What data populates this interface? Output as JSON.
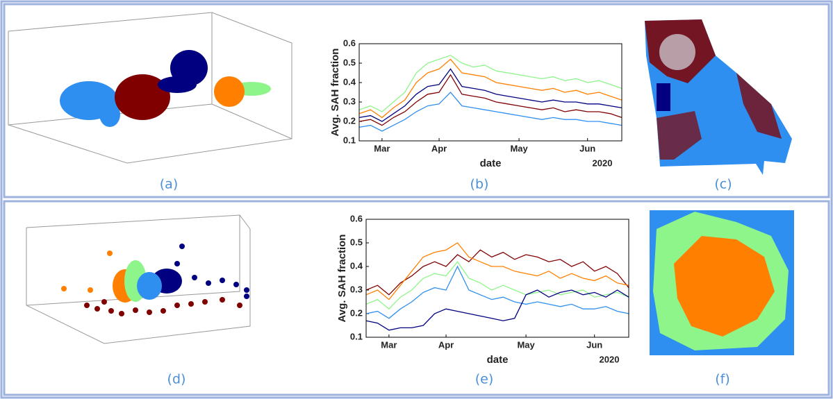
{
  "panel_labels": [
    "(a)",
    "(b)",
    "(c)",
    "(d)",
    "(e)",
    "(f)"
  ],
  "chart_data": [
    {
      "type": "line",
      "ylabel": "Avg. SAH fraction",
      "xlabel": "date",
      "year_label": "2020",
      "categories": [
        null,
        null,
        "Mar",
        null,
        null,
        null,
        null,
        "Apr",
        null,
        null,
        null,
        null,
        null,
        null,
        "May",
        null,
        null,
        null,
        null,
        null,
        "Jun",
        null,
        null,
        null
      ],
      "ylim": [
        0.1,
        0.6
      ],
      "yticks": [
        0.1,
        0.2,
        0.3,
        0.4,
        0.5,
        0.6
      ],
      "series": [
        {
          "color": "#8ef58b",
          "values": [
            0.26,
            0.28,
            0.25,
            0.3,
            0.35,
            0.45,
            0.5,
            0.52,
            0.54,
            0.5,
            0.48,
            0.49,
            0.46,
            0.45,
            0.44,
            0.43,
            0.42,
            0.43,
            0.41,
            0.42,
            0.4,
            0.41,
            0.39,
            0.37
          ]
        },
        {
          "color": "#ff8000",
          "values": [
            0.24,
            0.26,
            0.22,
            0.27,
            0.31,
            0.4,
            0.45,
            0.47,
            0.52,
            0.45,
            0.44,
            0.43,
            0.4,
            0.39,
            0.38,
            0.37,
            0.36,
            0.37,
            0.35,
            0.36,
            0.34,
            0.35,
            0.33,
            0.31
          ]
        },
        {
          "color": "#000080",
          "values": [
            0.22,
            0.23,
            0.2,
            0.24,
            0.28,
            0.34,
            0.38,
            0.39,
            0.47,
            0.38,
            0.37,
            0.36,
            0.34,
            0.33,
            0.32,
            0.31,
            0.3,
            0.31,
            0.3,
            0.3,
            0.29,
            0.29,
            0.28,
            0.27
          ]
        },
        {
          "color": "#800000",
          "values": [
            0.2,
            0.21,
            0.18,
            0.22,
            0.25,
            0.3,
            0.34,
            0.35,
            0.44,
            0.34,
            0.33,
            0.32,
            0.3,
            0.29,
            0.28,
            0.27,
            0.26,
            0.27,
            0.25,
            0.26,
            0.25,
            0.25,
            0.24,
            0.22
          ]
        },
        {
          "color": "#2f8ff0",
          "values": [
            0.17,
            0.18,
            0.15,
            0.18,
            0.21,
            0.25,
            0.28,
            0.29,
            0.35,
            0.28,
            0.27,
            0.26,
            0.25,
            0.24,
            0.23,
            0.22,
            0.21,
            0.22,
            0.21,
            0.21,
            0.2,
            0.2,
            0.19,
            0.18
          ]
        }
      ]
    },
    {
      "type": "line",
      "ylabel": "Avg. SAH fraction",
      "xlabel": "date",
      "year_label": "2020",
      "categories": [
        null,
        null,
        "Mar",
        null,
        null,
        null,
        null,
        "Apr",
        null,
        null,
        null,
        null,
        null,
        null,
        "May",
        null,
        null,
        null,
        null,
        null,
        "Jun",
        null,
        null,
        null
      ],
      "ylim": [
        0.1,
        0.6
      ],
      "yticks": [
        0.1,
        0.2,
        0.3,
        0.4,
        0.5,
        0.6
      ],
      "series": [
        {
          "color": "#800000",
          "values": [
            0.3,
            0.32,
            0.28,
            0.33,
            0.36,
            0.4,
            0.42,
            0.4,
            0.45,
            0.42,
            0.47,
            0.44,
            0.46,
            0.43,
            0.45,
            0.44,
            0.42,
            0.43,
            0.4,
            0.42,
            0.38,
            0.4,
            0.37,
            0.31
          ]
        },
        {
          "color": "#ff8000",
          "values": [
            0.28,
            0.3,
            0.26,
            0.32,
            0.38,
            0.44,
            0.46,
            0.47,
            0.5,
            0.44,
            0.42,
            0.4,
            0.4,
            0.38,
            0.37,
            0.36,
            0.38,
            0.35,
            0.37,
            0.35,
            0.34,
            0.36,
            0.33,
            0.32
          ]
        },
        {
          "color": "#8ef58b",
          "values": [
            0.24,
            0.26,
            0.22,
            0.27,
            0.3,
            0.35,
            0.37,
            0.36,
            0.42,
            0.35,
            0.33,
            0.3,
            0.32,
            0.3,
            0.28,
            0.29,
            0.3,
            0.28,
            0.29,
            0.3,
            0.27,
            0.28,
            0.29,
            0.27
          ]
        },
        {
          "color": "#2f8ff0",
          "values": [
            0.2,
            0.21,
            0.18,
            0.22,
            0.25,
            0.29,
            0.31,
            0.3,
            0.4,
            0.3,
            0.28,
            0.26,
            0.27,
            0.25,
            0.24,
            0.25,
            0.24,
            0.23,
            0.24,
            0.22,
            0.22,
            0.23,
            0.21,
            0.2
          ]
        },
        {
          "color": "#000080",
          "values": [
            0.17,
            0.16,
            0.13,
            0.14,
            0.14,
            0.15,
            0.2,
            0.22,
            0.21,
            0.2,
            0.19,
            0.18,
            0.17,
            0.18,
            0.28,
            0.3,
            0.27,
            0.29,
            0.3,
            0.28,
            0.29,
            0.27,
            0.3,
            0.27
          ]
        }
      ]
    }
  ]
}
